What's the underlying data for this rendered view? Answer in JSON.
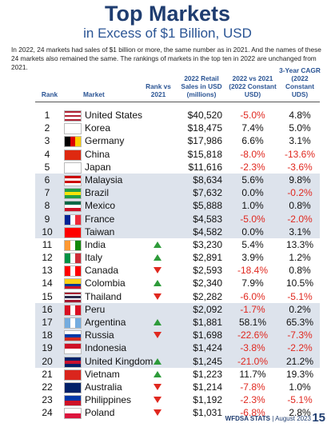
{
  "header": {
    "title": "Top Markets",
    "subtitle": "in Excess of $1 Billion, USD",
    "intro": "In 2022, 24 markets had sales of $1 billion or more, the same number as in 2021. And the names of these 24 markets also remained the same. The rankings of markets in the top ten in 2022 are unchanged from 2021."
  },
  "table": {
    "columns": [
      "Rank",
      "Market",
      "Rank vs 2021",
      "2022 Retail Sales in USD (millions)",
      "2022 vs 2021 (2022 Constant USD)",
      "3-Year CAGR (2022 Constant UDS)"
    ],
    "rows": [
      {
        "rank": 1,
        "market": "United States",
        "sales": "$40,520",
        "vs_2021": "-5.0%",
        "cagr": "4.8%"
      },
      {
        "rank": 2,
        "market": "Korea",
        "sales": "$18,475",
        "vs_2021": "7.4%",
        "cagr": "5.0%"
      },
      {
        "rank": 3,
        "market": "Germany",
        "sales": "$17,986",
        "vs_2021": "6.6%",
        "cagr": "3.1%"
      },
      {
        "rank": 4,
        "market": "China",
        "sales": "$15,818",
        "vs_2021": "-8.0%",
        "cagr": "-13.6%"
      },
      {
        "rank": 5,
        "market": "Japan",
        "sales": "$11,616",
        "vs_2021": "-2.3%",
        "cagr": "-3.6%"
      },
      {
        "rank": 6,
        "market": "Malaysia",
        "sales": "$8,634",
        "vs_2021": "5.6%",
        "cagr": "9.8%"
      },
      {
        "rank": 7,
        "market": "Brazil",
        "sales": "$7,632",
        "vs_2021": "0.0%",
        "cagr": "-0.2%"
      },
      {
        "rank": 8,
        "market": "Mexico",
        "sales": "$5,888",
        "vs_2021": "1.0%",
        "cagr": "0.8%"
      },
      {
        "rank": 9,
        "market": "France",
        "sales": "$4,583",
        "vs_2021": "-5.0%",
        "cagr": "-2.0%"
      },
      {
        "rank": 10,
        "market": "Taiwan",
        "sales": "$4,582",
        "vs_2021": "0.0%",
        "cagr": "3.1%"
      },
      {
        "rank": 11,
        "market": "India",
        "change": "up",
        "sales": "$3,230",
        "vs_2021": "5.4%",
        "cagr": "13.3%"
      },
      {
        "rank": 12,
        "market": "Italy",
        "change": "up",
        "sales": "$2,891",
        "vs_2021": "3.9%",
        "cagr": "1.2%"
      },
      {
        "rank": 13,
        "market": "Canada",
        "change": "down",
        "sales": "$2,593",
        "vs_2021": "-18.4%",
        "cagr": "0.8%"
      },
      {
        "rank": 14,
        "market": "Colombia",
        "change": "up",
        "sales": "$2,340",
        "vs_2021": "7.9%",
        "cagr": "10.5%"
      },
      {
        "rank": 15,
        "market": "Thailand",
        "change": "down",
        "sales": "$2,282",
        "vs_2021": "-6.0%",
        "cagr": "-5.1%"
      },
      {
        "rank": 16,
        "market": "Peru",
        "sales": "$2,092",
        "vs_2021": "-1.7%",
        "cagr": "0.2%"
      },
      {
        "rank": 17,
        "market": "Argentina",
        "change": "up",
        "sales": "$1,881",
        "vs_2021": "58.1%",
        "cagr": "65.3%"
      },
      {
        "rank": 18,
        "market": "Russia",
        "change": "down",
        "sales": "$1,698",
        "vs_2021": "-22.6%",
        "cagr": "-7.3%"
      },
      {
        "rank": 19,
        "market": "Indonesia",
        "sales": "$1,424",
        "vs_2021": "-3.8%",
        "cagr": "-2.2%"
      },
      {
        "rank": 20,
        "market": "United Kingdom",
        "change": "up",
        "sales": "$1,245",
        "vs_2021": "-21.0%",
        "cagr": "21.2%"
      },
      {
        "rank": 21,
        "market": "Vietnam",
        "change": "up",
        "sales": "$1,223",
        "vs_2021": "11.7%",
        "cagr": "19.3%"
      },
      {
        "rank": 22,
        "market": "Australia",
        "change": "down",
        "sales": "$1,214",
        "vs_2021": "-7.8%",
        "cagr": "1.0%"
      },
      {
        "rank": 23,
        "market": "Philippines",
        "change": "down",
        "sales": "$1,192",
        "vs_2021": "-2.3%",
        "cagr": "-5.1%"
      },
      {
        "rank": 24,
        "market": "Poland",
        "change": "down",
        "sales": "$1,031",
        "vs_2021": "-6.8%",
        "cagr": "2.8%"
      }
    ]
  },
  "footer": {
    "source": "WFDSA STATS",
    "date": "| August 2023",
    "page": "15"
  }
}
